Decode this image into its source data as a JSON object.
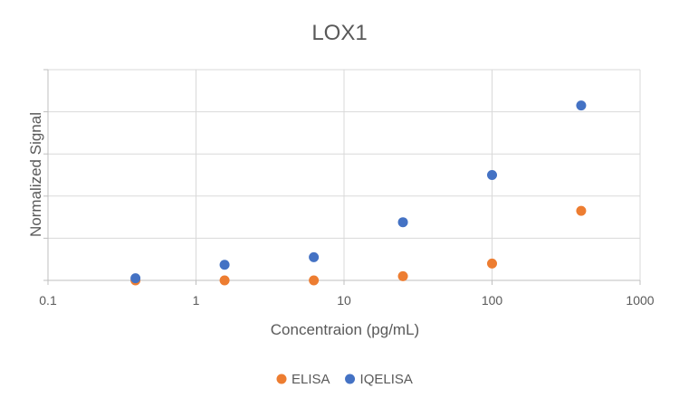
{
  "chart_data": {
    "type": "scatter",
    "title": "LOX1",
    "xlabel": "Concentraion (pg/mL)",
    "ylabel": "Normalized Signal",
    "x_scale": "log",
    "xlim": [
      0.1,
      1000
    ],
    "x_ticks": [
      "0.1",
      "1",
      "10",
      "100",
      "1000"
    ],
    "y_ticks_labeled": false,
    "ylim": [
      0,
      5
    ],
    "grid": true,
    "legend_position": "bottom",
    "series": [
      {
        "name": "ELISA",
        "color": "#ED7D31",
        "points": [
          {
            "x": 0.39,
            "y": 0.0
          },
          {
            "x": 1.56,
            "y": 0.0
          },
          {
            "x": 6.25,
            "y": 0.0
          },
          {
            "x": 25,
            "y": 0.1
          },
          {
            "x": 100,
            "y": 0.4
          },
          {
            "x": 400,
            "y": 1.65
          }
        ]
      },
      {
        "name": "IQELISA",
        "color": "#4472C4",
        "points": [
          {
            "x": 0.39,
            "y": 0.05
          },
          {
            "x": 1.56,
            "y": 0.37
          },
          {
            "x": 6.25,
            "y": 0.55
          },
          {
            "x": 25,
            "y": 1.38
          },
          {
            "x": 100,
            "y": 2.5
          },
          {
            "x": 400,
            "y": 4.15
          }
        ]
      }
    ]
  }
}
